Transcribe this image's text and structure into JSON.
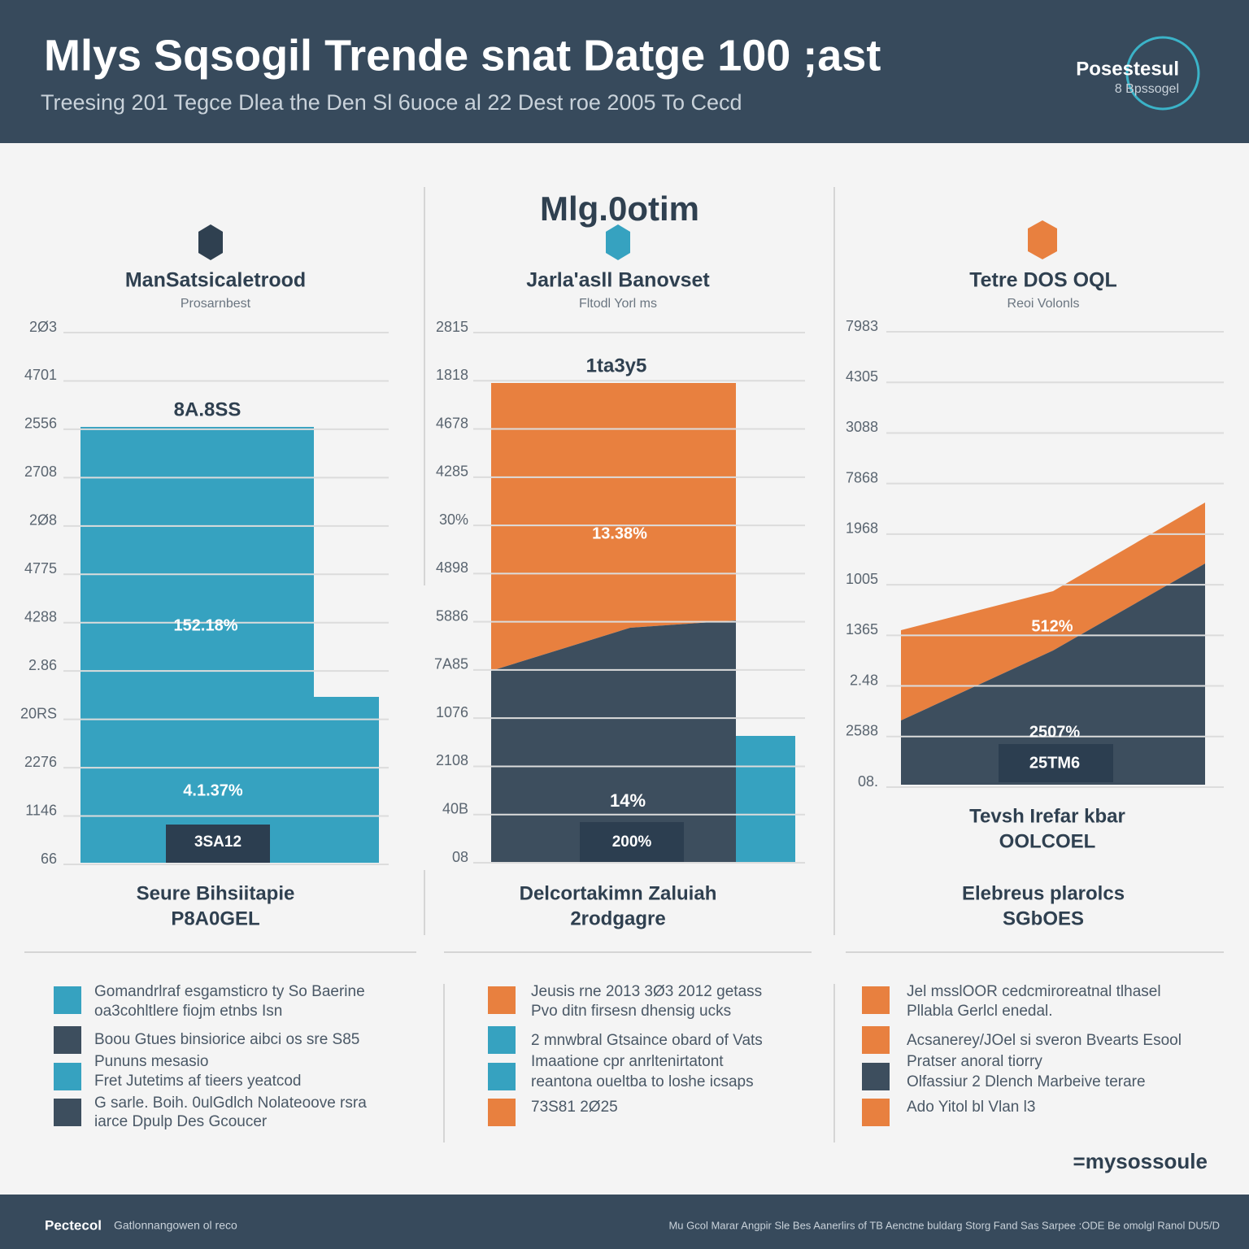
{
  "header": {
    "title": "Mlys Sqsogil Trende snat Datge 100 ;ast",
    "subtitle": "Treesing 201 Tegce Dlea the Den Sl 6uoce al 22 Dest roe 2005 To Cecd",
    "logo": "Posestesul",
    "logo_sub": "8 Bpssogel"
  },
  "center_heading": "Mlg.0otim",
  "panels": [
    {
      "title": "ManSatsicaletrood",
      "subtitle": "Prosarnbest",
      "ticks": [
        "2Ø3",
        "4701",
        "2556",
        "2708",
        "2Ø8",
        "4775",
        "4288",
        "2.86",
        "20RS",
        "2276",
        "1146",
        "66"
      ],
      "labels": [
        "8A.8SS",
        "152.18%",
        "4.1.37%",
        "3SA12"
      ],
      "footer": [
        "Seure Bihsiitapie",
        "P8A0GEL"
      ]
    },
    {
      "title": "Jarla'asll Banovset",
      "subtitle": "Fltodl Yorl ms",
      "ticks": [
        "2815",
        "1818",
        "4678",
        "4285",
        "30%",
        "4898",
        "5886",
        "7A85",
        "1076",
        "2108",
        "40B",
        "08"
      ],
      "labels": [
        "1ta3y5",
        "13.38%",
        "14%",
        "200%"
      ],
      "footer": [
        "Delcortakimn Zaluiah",
        "2rodgagre"
      ]
    },
    {
      "title": "Tetre DOS OQL",
      "subtitle": "Reoi Volonls",
      "ticks": [
        "7983",
        "4305",
        "3088",
        "7868",
        "1968",
        "1005",
        "1365",
        "2.48",
        "2588",
        "08."
      ],
      "labels": [
        "512%",
        "2507%",
        "25TM6"
      ],
      "note": [
        "Tevsh Irefar kbar",
        "OOLCOEL"
      ],
      "footer": [
        "Elebreus plarolcs",
        "SGbOES"
      ]
    }
  ],
  "legends": [
    {
      "items": [
        {
          "lines": [
            "Gomandrlraf esgamsticro ty So Baerine",
            "oa3cohltlere fiojm etnbs Isn"
          ]
        },
        {
          "lines": [
            "Boou Gtues binsiorice aibci os sre S85",
            "Pununs mesasio"
          ]
        },
        {
          "lines": [
            "Fret Jutetims af tieers yeatcod"
          ]
        },
        {
          "lines": [
            "G sarle. Boih. 0ulGdlch Nolateoove rsra",
            "iarce Dpulp Des Gcoucer"
          ]
        }
      ]
    },
    {
      "items": [
        {
          "lines": [
            "Jeusis rne 2013 3Ø3 2012 getass",
            "Pvo ditn firsesn dhensig ucks"
          ]
        },
        {
          "lines": [
            "2 mnwbral Gtsaince obard of Vats"
          ]
        },
        {
          "lines": [
            "Imaatione cpr anrltenirtatont",
            "reantona oueltba to loshe icsaps"
          ]
        },
        {
          "lines": [
            "73S81 2Ø25"
          ]
        }
      ]
    },
    {
      "items": [
        {
          "lines": [
            "Jel msslOOR cedcmiroreatnal tlhasel",
            "Pllabla Gerlcl enedal."
          ]
        },
        {
          "lines": [
            "Acsanerey/JOel si sveron Bvearts Esool"
          ]
        },
        {
          "lines": [
            "Pratser anoral tiorry",
            "Olfassiur 2 Dlench Marbeive terare"
          ]
        },
        {
          "lines": [
            "Ado Yitol bl Vlan l3"
          ]
        }
      ]
    }
  ],
  "signature": "=mysossoule",
  "footer": {
    "brand": "Pectecol",
    "brand_sub": "Gatlonnangowen ol reco",
    "right": "Mu Gcol Marar Angpir Sle Bes Aanerlirs of TB Aenctne buldarg Storg Fand Sas Sarpee :ODE Be omolgl Ranol DU5/D"
  }
}
